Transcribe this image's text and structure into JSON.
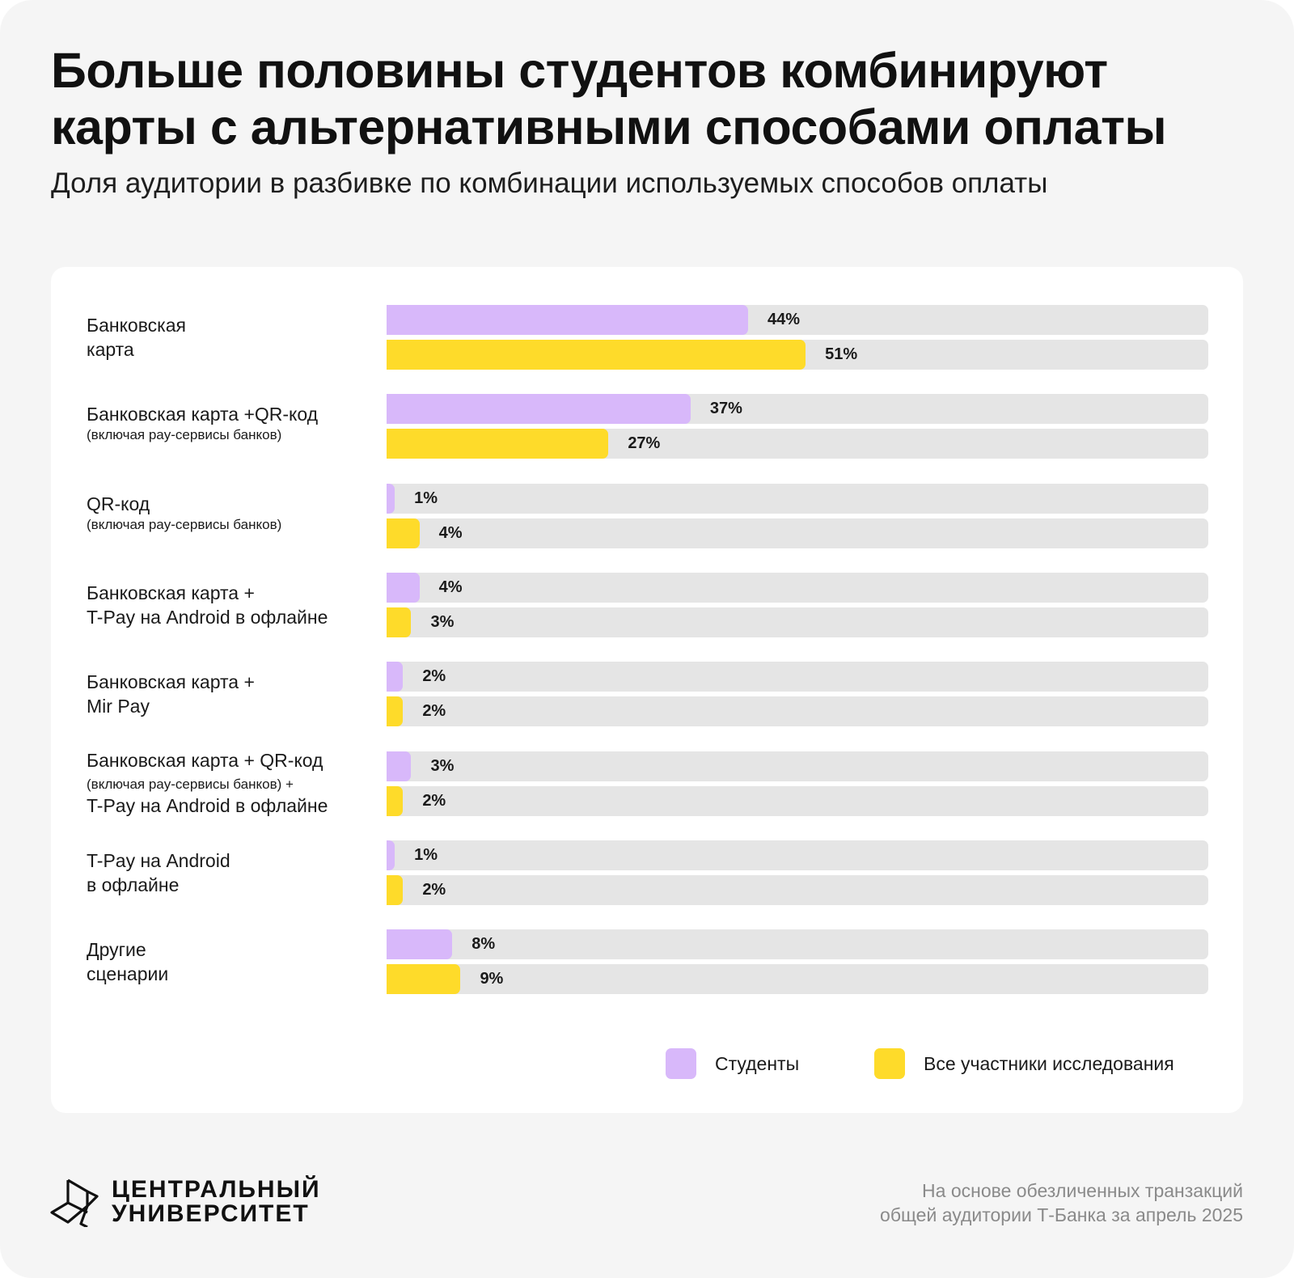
{
  "header": {
    "title": "Больше половины студентов комбинируют карты с альтернативными способами оплаты",
    "title_line1": "Больше половины студентов комбинируют",
    "title_line2": "карты с альтернативными способами оплаты",
    "subtitle": "Доля аудитории в разбивке по комбинации используемых способов оплаты"
  },
  "colors": {
    "students": "#d8b8fa",
    "all": "#fedb2a",
    "track": "#e5e5e5"
  },
  "chart_data": {
    "type": "bar",
    "orientation": "horizontal",
    "title": "Больше половины студентов комбинируют карты с альтернативными способами оплаты",
    "subtitle": "Доля аудитории в разбивке по комбинации используемых способов оплаты",
    "xlabel": "",
    "ylabel": "",
    "xlim": [
      0,
      100
    ],
    "unit": "%",
    "grid": false,
    "legend_position": "bottom-right",
    "categories": [
      "Банковская карта",
      "Банковская карта +QR-код (включая pay-сервисы банков)",
      "QR-код (включая pay-сервисы банков)",
      "Банковская карта + T-Pay на Android в офлайне",
      "Банковская карта + Mir Pay",
      "Банковская карта + QR-код (включая pay-сервисы банков) + T-Pay на Android в офлайне",
      "T-Pay на Android в офлайне",
      "Другие сценарии"
    ],
    "category_display": [
      {
        "lines": [
          "Банковская",
          "карта"
        ],
        "note": ""
      },
      {
        "lines": [
          "Банковская карта +QR-код"
        ],
        "note": "(включая pay-сервисы банков)"
      },
      {
        "lines": [
          "QR-код"
        ],
        "note": "(включая pay-сервисы банков)"
      },
      {
        "lines": [
          "Банковская карта +",
          "T-Pay на Android в офлайне"
        ],
        "note": ""
      },
      {
        "lines": [
          "Банковская карта +",
          "Mir Pay"
        ],
        "note": ""
      },
      {
        "lines": [
          "Банковская карта + QR-код"
        ],
        "note": "(включая pay-сервисы банков) +",
        "after": "T-Pay на Android в офлайне"
      },
      {
        "lines": [
          "T-Pay на Android",
          "в офлайне"
        ],
        "note": ""
      },
      {
        "lines": [
          "Другие",
          "сценарии"
        ],
        "note": ""
      }
    ],
    "series": [
      {
        "name": "Студенты",
        "color": "#d8b8fa",
        "values": [
          44,
          37,
          1,
          4,
          2,
          3,
          1,
          8
        ]
      },
      {
        "name": "Все участники исследования",
        "color": "#fedb2a",
        "values": [
          51,
          27,
          4,
          3,
          2,
          2,
          2,
          9
        ]
      }
    ]
  },
  "legend": {
    "students": "Студенты",
    "all": "Все участники исследования"
  },
  "footer": {
    "logo_line1": "ЦЕНТРАЛЬНЫЙ",
    "logo_line2": "УНИВЕРСИТЕТ",
    "note_line1": "На основе обезличенных транзакций",
    "note_line2": "общей аудитории Т-Банка за апрель 2025"
  }
}
